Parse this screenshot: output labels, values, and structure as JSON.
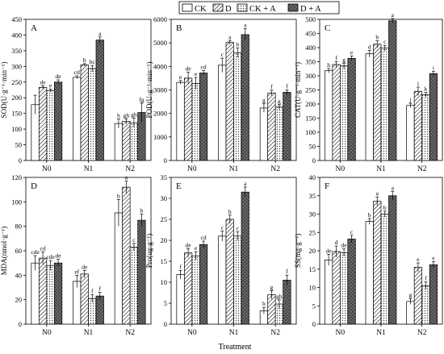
{
  "legend": [
    {
      "label": "CK",
      "pattern": "none"
    },
    {
      "label": "D",
      "pattern": "diag"
    },
    {
      "label": "CK + A",
      "pattern": "dots"
    },
    {
      "label": "D + A",
      "pattern": "cross"
    }
  ],
  "xlabel": "Treatment",
  "colors": {
    "bar_stroke": "#000000",
    "white": "#ffffff",
    "dark_fill": "#6e6e6e"
  },
  "chart_data": [
    {
      "type": "bar",
      "panel": "A",
      "categories": [
        "N0",
        "N1",
        "N2"
      ],
      "ylabel": "SOD(U·g⁻¹·min⁻¹)",
      "ylim": [
        0,
        450
      ],
      "yticks": [
        0,
        50,
        100,
        150,
        200,
        250,
        300,
        350,
        400,
        450
      ],
      "series": [
        {
          "name": "CK",
          "values": [
            178,
            265,
            118
          ],
          "errors": [
            30,
            5,
            15
          ],
          "letters": [
            "",
            "cd",
            "h"
          ]
        },
        {
          "name": "D",
          "values": [
            233,
            305,
            125
          ],
          "errors": [
            5,
            4,
            8
          ],
          "letters": [
            "de",
            "b",
            "gh"
          ]
        },
        {
          "name": "CK + A",
          "values": [
            223,
            293,
            120
          ],
          "errors": [
            5,
            10,
            15
          ],
          "letters": [
            "e",
            "bc",
            "gh"
          ]
        },
        {
          "name": "D + A",
          "values": [
            250,
            384,
            153
          ],
          "errors": [
            7,
            10,
            30
          ],
          "letters": [
            "de",
            "a",
            "fg"
          ]
        }
      ]
    },
    {
      "type": "bar",
      "panel": "B",
      "categories": [
        "N0",
        "N1",
        "N2"
      ],
      "ylabel": "POD(U·g⁻¹·min⁻¹)",
      "ylim": [
        0,
        6000
      ],
      "yticks": [
        0,
        1000,
        2000,
        3000,
        4000,
        5000,
        6000
      ],
      "series": [
        {
          "name": "CK",
          "values": [
            3320,
            4050,
            2230
          ],
          "errors": [
            80,
            300,
            180
          ],
          "letters": [
            "e",
            "c",
            "g"
          ]
        },
        {
          "name": "D",
          "values": [
            3500,
            5020,
            2870
          ],
          "errors": [
            250,
            80,
            120
          ],
          "letters": [
            "de",
            "a",
            "f"
          ]
        },
        {
          "name": "CK + A",
          "values": [
            3280,
            4580,
            2270
          ],
          "errors": [
            250,
            200,
            100
          ],
          "letters": [
            "e",
            "b",
            "g"
          ]
        },
        {
          "name": "D + A",
          "values": [
            3720,
            5350,
            2900
          ],
          "errors": [
            100,
            250,
            100
          ],
          "letters": [
            "cd",
            "a",
            "f"
          ]
        }
      ]
    },
    {
      "type": "bar",
      "panel": "C",
      "categories": [
        "N0",
        "N1",
        "N2"
      ],
      "ylabel": "CAT(U·g⁻¹·min⁻¹)",
      "ylim": [
        0,
        500
      ],
      "yticks": [
        0,
        50,
        100,
        150,
        200,
        250,
        300,
        350,
        400,
        450,
        500
      ],
      "series": [
        {
          "name": "CK",
          "values": [
            318,
            378,
            195
          ],
          "errors": [
            8,
            12,
            8
          ],
          "letters": [
            "h",
            "d",
            "j"
          ]
        },
        {
          "name": "D",
          "values": [
            340,
            412,
            245
          ],
          "errors": [
            10,
            12,
            15
          ],
          "letters": [
            "f",
            "b",
            "i"
          ]
        },
        {
          "name": "CK + A",
          "values": [
            335,
            398,
            233
          ],
          "errors": [
            10,
            10,
            8
          ],
          "letters": [
            "g",
            "c",
            "k"
          ]
        },
        {
          "name": "D + A",
          "values": [
            362,
            495,
            308
          ],
          "errors": [
            8,
            8,
            8
          ],
          "letters": [
            "e",
            "a",
            "i"
          ]
        }
      ]
    },
    {
      "type": "bar",
      "panel": "D",
      "categories": [
        "N0",
        "N1",
        "N2"
      ],
      "ylabel": "MDA(nmol·g⁻¹)",
      "ylim": [
        0,
        120
      ],
      "yticks": [
        0,
        20,
        40,
        60,
        80,
        100,
        120
      ],
      "series": [
        {
          "name": "CK",
          "values": [
            50,
            35,
            91
          ],
          "errors": [
            6,
            5,
            11
          ],
          "letters": [
            "cde",
            "ef",
            "b"
          ]
        },
        {
          "name": "D",
          "values": [
            54,
            41,
            112
          ],
          "errors": [
            5,
            3,
            5
          ],
          "letters": [
            "cd",
            "de",
            "a"
          ]
        },
        {
          "name": "CK + A",
          "values": [
            48,
            21,
            63
          ],
          "errors": [
            4,
            3,
            3
          ],
          "letters": [
            "cde",
            "f",
            "c"
          ]
        },
        {
          "name": "D + A",
          "values": [
            50,
            23,
            85
          ],
          "errors": [
            3,
            3,
            5
          ],
          "letters": [
            "de",
            "f",
            "b"
          ]
        }
      ]
    },
    {
      "type": "bar",
      "panel": "E",
      "categories": [
        "N0",
        "N1",
        "N2"
      ],
      "ylabel": "Pro(ug·g⁻¹)",
      "ylim": [
        0,
        35
      ],
      "yticks": [
        0,
        5,
        10,
        15,
        20,
        25,
        30,
        35
      ],
      "series": [
        {
          "name": "CK",
          "values": [
            11.8,
            21,
            3.2
          ],
          "errors": [
            1.0,
            1.2,
            0.8
          ],
          "letters": [
            "f",
            "c",
            "h"
          ]
        },
        {
          "name": "D",
          "values": [
            17,
            25,
            7
          ],
          "errors": [
            1.0,
            1.0,
            1.0
          ],
          "letters": [
            "de",
            "b",
            "g"
          ]
        },
        {
          "name": "CK + A",
          "values": [
            16.3,
            21,
            4.8
          ],
          "errors": [
            1.0,
            1.0,
            1.0
          ],
          "letters": [
            "e",
            "c",
            "gh"
          ]
        },
        {
          "name": "D + A",
          "values": [
            19,
            31.5,
            10.5
          ],
          "errors": [
            0.8,
            1.2,
            1.2
          ],
          "letters": [
            "cd",
            "a",
            "f"
          ]
        }
      ]
    },
    {
      "type": "bar",
      "panel": "F",
      "categories": [
        "N0",
        "N1",
        "N2"
      ],
      "ylabel": "SS(mg·g⁻¹)",
      "ylim": [
        0,
        40
      ],
      "yticks": [
        0,
        5,
        10,
        15,
        20,
        25,
        30,
        35,
        40
      ],
      "series": [
        {
          "name": "CK",
          "values": [
            17.5,
            28,
            6.2
          ],
          "errors": [
            1.5,
            0.8,
            0.8
          ],
          "letters": [
            "de",
            "b",
            "g"
          ]
        },
        {
          "name": "D",
          "values": [
            19.8,
            33.5,
            15.5
          ],
          "errors": [
            1.5,
            1.2,
            1.2
          ],
          "letters": [
            "d",
            "a",
            "e"
          ]
        },
        {
          "name": "CK + A",
          "values": [
            19.5,
            30,
            10.5
          ],
          "errors": [
            1.0,
            0.8,
            1.0
          ],
          "letters": [
            "de",
            "b",
            "f"
          ]
        },
        {
          "name": "D + A",
          "values": [
            23.2,
            35,
            16.2
          ],
          "errors": [
            1.0,
            1.2,
            0.8
          ],
          "letters": [
            "c",
            "a",
            "e"
          ]
        }
      ]
    }
  ]
}
